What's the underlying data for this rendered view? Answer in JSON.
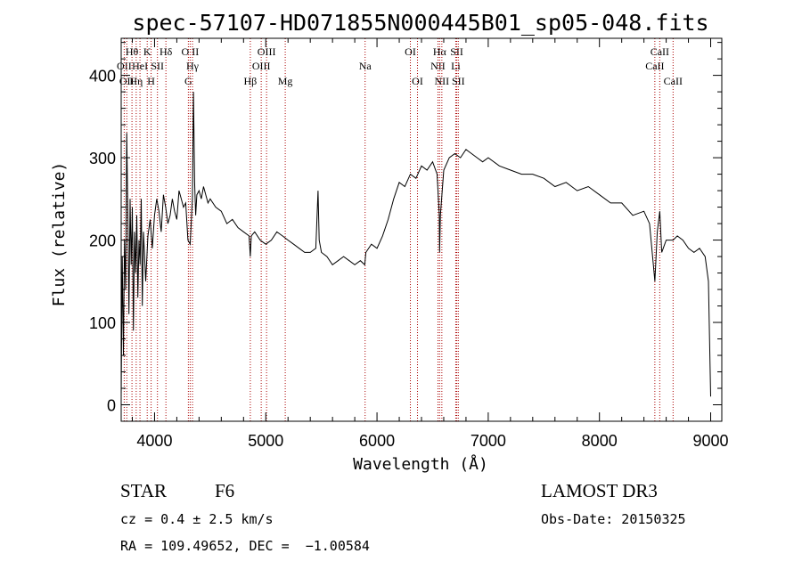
{
  "chart_data": {
    "type": "line",
    "title": "spec-57107-HD071855N000445B01_sp05-048.fits",
    "xlabel": "Wavelength (Å)",
    "ylabel": "Flux (relative)",
    "xlim": [
      3700,
      9100
    ],
    "ylim": [
      -20,
      445
    ],
    "xticks": [
      4000,
      5000,
      6000,
      7000,
      8000,
      9000
    ],
    "yticks": [
      0,
      100,
      200,
      300,
      400
    ],
    "grid": false,
    "series": [
      {
        "x": [
          3700,
          3710,
          3720,
          3730,
          3740,
          3750,
          3760,
          3770,
          3780,
          3790,
          3800,
          3810,
          3820,
          3830,
          3840,
          3850,
          3860,
          3870,
          3880,
          3890,
          3900,
          3920,
          3940,
          3960,
          3980,
          4000,
          4020,
          4040,
          4060,
          4080,
          4100,
          4120,
          4140,
          4160,
          4180,
          4200,
          4220,
          4240,
          4260,
          4280,
          4300,
          4320,
          4340,
          4350,
          4360,
          4370,
          4380,
          4400,
          4420,
          4440,
          4460,
          4480,
          4500,
          4550,
          4600,
          4650,
          4700,
          4750,
          4800,
          4850,
          4861,
          4870,
          4900,
          4950,
          5000,
          5050,
          5100,
          5150,
          5200,
          5250,
          5300,
          5350,
          5400,
          5450,
          5470,
          5480,
          5500,
          5550,
          5600,
          5650,
          5700,
          5750,
          5800,
          5850,
          5890,
          5900,
          5950,
          6000,
          6050,
          6100,
          6150,
          6200,
          6250,
          6300,
          6350,
          6400,
          6450,
          6500,
          6540,
          6560,
          6563,
          6570,
          6600,
          6650,
          6700,
          6750,
          6800,
          6850,
          6900,
          6950,
          7000,
          7100,
          7200,
          7300,
          7400,
          7500,
          7600,
          7700,
          7800,
          7900,
          8000,
          8100,
          8200,
          8300,
          8400,
          8450,
          8498,
          8520,
          8542,
          8560,
          8600,
          8662,
          8700,
          8750,
          8800,
          8850,
          8900,
          8950,
          8980,
          9000
        ],
        "y": [
          10,
          180,
          60,
          200,
          140,
          330,
          230,
          110,
          250,
          170,
          240,
          90,
          210,
          160,
          230,
          130,
          200,
          170,
          250,
          120,
          210,
          150,
          205,
          225,
          190,
          230,
          250,
          235,
          210,
          255,
          240,
          220,
          230,
          250,
          235,
          225,
          260,
          250,
          240,
          245,
          200,
          195,
          250,
          380,
          270,
          230,
          255,
          260,
          250,
          265,
          255,
          245,
          250,
          240,
          235,
          220,
          225,
          215,
          210,
          205,
          180,
          205,
          210,
          200,
          195,
          200,
          210,
          205,
          200,
          195,
          190,
          185,
          185,
          190,
          260,
          200,
          185,
          180,
          170,
          175,
          180,
          175,
          170,
          175,
          170,
          185,
          195,
          190,
          205,
          225,
          250,
          270,
          265,
          280,
          275,
          290,
          285,
          295,
          280,
          230,
          185,
          230,
          285,
          300,
          305,
          300,
          310,
          305,
          300,
          295,
          300,
          290,
          285,
          280,
          280,
          275,
          265,
          270,
          260,
          265,
          255,
          245,
          245,
          230,
          235,
          220,
          150,
          210,
          235,
          185,
          200,
          200,
          205,
          200,
          190,
          185,
          190,
          180,
          150,
          10
        ]
      }
    ],
    "spectral_lines": [
      {
        "wavelength": 3727,
        "label": "OII",
        "row": 2
      },
      {
        "wavelength": 3750,
        "label": "OII",
        "row": 3
      },
      {
        "wavelength": 3797,
        "label": "Hθ",
        "row": 1
      },
      {
        "wavelength": 3835,
        "label": "Hη",
        "row": 3
      },
      {
        "wavelength": 3869,
        "label": "HeI",
        "row": 2
      },
      {
        "wavelength": 3934,
        "label": "K",
        "row": 1
      },
      {
        "wavelength": 3969,
        "label": "H",
        "row": 3
      },
      {
        "wavelength": 4026,
        "label": "SII",
        "row": 2
      },
      {
        "wavelength": 4102,
        "label": "Hδ",
        "row": 1
      },
      {
        "wavelength": 4304,
        "label": "G",
        "row": 3
      },
      {
        "wavelength": 4320,
        "label": "O II",
        "row": 1
      },
      {
        "wavelength": 4341,
        "label": "Hγ",
        "row": 2
      },
      {
        "wavelength": 4861,
        "label": "Hβ",
        "row": 3
      },
      {
        "wavelength": 4959,
        "label": "OIII",
        "row": 2
      },
      {
        "wavelength": 5007,
        "label": "OIII",
        "row": 1
      },
      {
        "wavelength": 5175,
        "label": "Mg",
        "row": 3
      },
      {
        "wavelength": 5893,
        "label": "Na",
        "row": 2
      },
      {
        "wavelength": 6300,
        "label": "OI",
        "row": 1
      },
      {
        "wavelength": 6364,
        "label": "OI",
        "row": 3
      },
      {
        "wavelength": 6548,
        "label": "NII",
        "row": 2
      },
      {
        "wavelength": 6563,
        "label": "Hα",
        "row": 1
      },
      {
        "wavelength": 6583,
        "label": "NII",
        "row": 3
      },
      {
        "wavelength": 6708,
        "label": "Li",
        "row": 2
      },
      {
        "wavelength": 6717,
        "label": "SII",
        "row": 1
      },
      {
        "wavelength": 6731,
        "label": "SII",
        "row": 3
      },
      {
        "wavelength": 8498,
        "label": "CaII",
        "row": 2
      },
      {
        "wavelength": 8542,
        "label": "CaII",
        "row": 1
      },
      {
        "wavelength": 8662,
        "label": "CaII",
        "row": 3
      }
    ],
    "line_color": "#aa0000"
  },
  "footer": {
    "object_type": "STAR",
    "subclass": "F6",
    "survey": "LAMOST DR3",
    "cz": "cz = 0.4 ± 2.5 km/s",
    "obs_date": "Obs-Date: 20150325",
    "coords": "RA = 109.49652, DEC =  −1.00584"
  }
}
